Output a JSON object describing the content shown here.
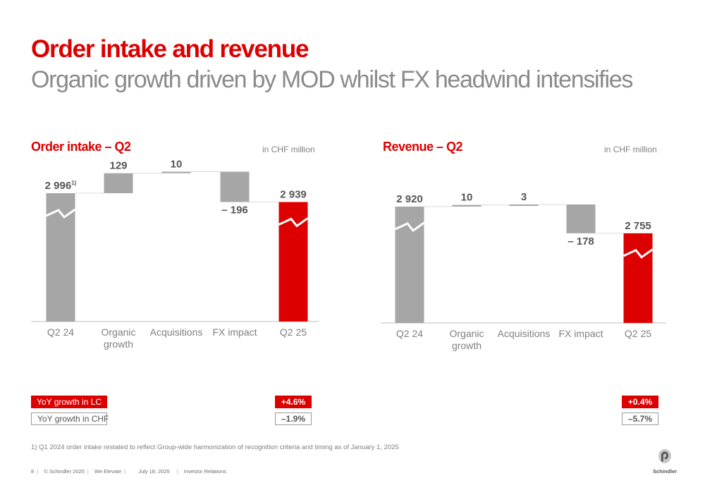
{
  "header": {
    "title": "Order intake and revenue",
    "subtitle": "Organic growth driven by MOD whilst FX headwind intensifies"
  },
  "colors": {
    "accent": "#dc0000",
    "bar_gray": "#a6a6a6"
  },
  "charts": {
    "order": {
      "title": "Order intake – Q2",
      "unit": "in CHF million"
    },
    "revenue": {
      "title": "Revenue – Q2",
      "unit": "in CHF million"
    }
  },
  "chart_data": [
    {
      "type": "bar",
      "subtype": "waterfall",
      "title": "Order intake – Q2",
      "unit": "in CHF million",
      "categories": [
        "Q2 24",
        "Organic growth",
        "Acquisitions",
        "FX impact",
        "Q2 25"
      ],
      "values": [
        2996,
        129,
        10,
        -196,
        2939
      ],
      "labels": [
        "2 996",
        "129",
        "10",
        "– 196",
        "2 939"
      ],
      "footnote_marker": "1)",
      "bar_kinds": [
        "total",
        "delta",
        "delta",
        "delta",
        "total"
      ],
      "bar_colors": [
        "#a6a6a6",
        "#a6a6a6",
        "#a6a6a6",
        "#a6a6a6",
        "#dc0000"
      ],
      "axis_break": true
    },
    {
      "type": "bar",
      "subtype": "waterfall",
      "title": "Revenue – Q2",
      "unit": "in CHF million",
      "categories": [
        "Q2 24",
        "Organic growth",
        "Acquisitions",
        "FX impact",
        "Q2 25"
      ],
      "values": [
        2920,
        10,
        3,
        -178,
        2755
      ],
      "labels": [
        "2 920",
        "10",
        "3",
        "– 178",
        "2 755"
      ],
      "bar_kinds": [
        "total",
        "delta",
        "delta",
        "delta",
        "total"
      ],
      "bar_colors": [
        "#a6a6a6",
        "#a6a6a6",
        "#a6a6a6",
        "#a6a6a6",
        "#dc0000"
      ],
      "axis_break": true
    }
  ],
  "yoy": {
    "lc_label": "YoY growth in LC",
    "chf_label": "YoY growth in CHF",
    "order": {
      "lc": "+4.6%",
      "chf": "–1.9%"
    },
    "revenue": {
      "lc": "+0.4%",
      "chf": "–5.7%"
    }
  },
  "footnote": "1) Q1 2024 order intake restated to reflect Group-wide harmonization of recognition criteria and timing as of January 1, 2025",
  "footer": {
    "page": "8",
    "copyright": "© Schindler 2025",
    "tagline": "We Elevate",
    "date": "July 18, 2025",
    "dept": "Investor Relations"
  },
  "logo": {
    "name": "Schindler",
    "icon": "schindler-logo-icon"
  }
}
